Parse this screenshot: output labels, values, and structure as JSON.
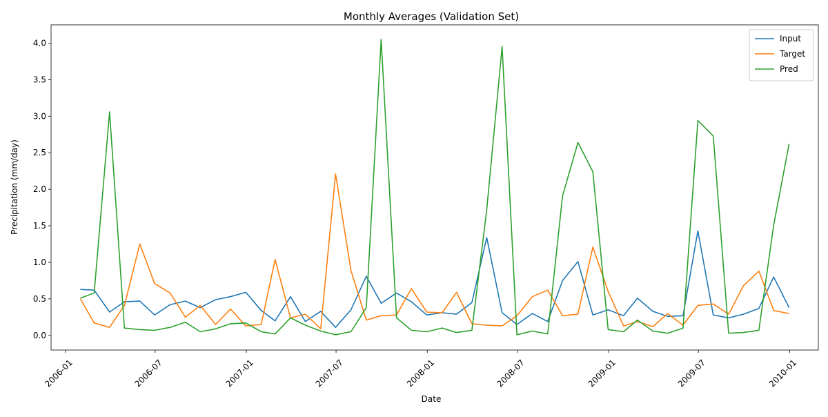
{
  "chart_data": {
    "type": "line",
    "title": "Monthly Averages (Validation Set)",
    "xlabel": "Date",
    "ylabel": "Precipitation (mm/day)",
    "x_ticks": [
      "2006-01",
      "2006-07",
      "2007-01",
      "2007-07",
      "2008-01",
      "2008-07",
      "2009-01",
      "2009-07",
      "2010-01"
    ],
    "y_ticks": [
      "0.0",
      "0.5",
      "1.0",
      "1.5",
      "2.0",
      "2.5",
      "3.0",
      "3.5",
      "4.0"
    ],
    "xlim": [
      "2005-12-03",
      "2010-02-28"
    ],
    "ylim": [
      -0.2,
      4.25
    ],
    "grid": false,
    "legend_position": "top-right",
    "x": [
      "2006-01-31",
      "2006-02-28",
      "2006-03-31",
      "2006-04-30",
      "2006-05-31",
      "2006-06-30",
      "2006-07-31",
      "2006-08-31",
      "2006-09-30",
      "2006-10-31",
      "2006-11-30",
      "2006-12-31",
      "2007-01-31",
      "2007-02-28",
      "2007-03-31",
      "2007-04-30",
      "2007-05-31",
      "2007-06-30",
      "2007-07-31",
      "2007-08-31",
      "2007-09-30",
      "2007-10-31",
      "2007-11-30",
      "2007-12-31",
      "2008-01-31",
      "2008-02-29",
      "2008-03-31",
      "2008-04-30",
      "2008-05-31",
      "2008-06-30",
      "2008-07-31",
      "2008-08-31",
      "2008-09-30",
      "2008-10-31",
      "2008-11-30",
      "2008-12-31",
      "2009-01-31",
      "2009-02-28",
      "2009-03-31",
      "2009-04-30",
      "2009-05-31",
      "2009-06-30",
      "2009-07-31",
      "2009-08-31",
      "2009-09-30",
      "2009-10-31",
      "2009-11-30",
      "2009-12-31"
    ],
    "series": [
      {
        "name": "Input",
        "color": "#1f77b4",
        "values": [
          0.63,
          0.62,
          0.32,
          0.46,
          0.47,
          0.28,
          0.42,
          0.47,
          0.38,
          0.49,
          0.53,
          0.59,
          0.34,
          0.2,
          0.53,
          0.19,
          0.33,
          0.11,
          0.35,
          0.81,
          0.44,
          0.58,
          0.46,
          0.28,
          0.31,
          0.29,
          0.45,
          1.34,
          0.31,
          0.15,
          0.3,
          0.19,
          0.75,
          1.01,
          0.28,
          0.35,
          0.27,
          0.51,
          0.33,
          0.26,
          0.27,
          1.43,
          0.28,
          0.24,
          0.29,
          0.37,
          0.8,
          0.38
        ]
      },
      {
        "name": "Target",
        "color": "#ff7f0e",
        "values": [
          0.5,
          0.17,
          0.11,
          0.41,
          1.25,
          0.71,
          0.58,
          0.25,
          0.41,
          0.15,
          0.36,
          0.13,
          0.15,
          1.04,
          0.24,
          0.29,
          0.09,
          2.21,
          0.89,
          0.21,
          0.27,
          0.28,
          0.64,
          0.32,
          0.31,
          0.59,
          0.16,
          0.14,
          0.13,
          0.27,
          0.53,
          0.62,
          0.27,
          0.29,
          1.21,
          0.6,
          0.13,
          0.19,
          0.12,
          0.3,
          0.14,
          0.41,
          0.43,
          0.29,
          0.68,
          0.88,
          0.34,
          0.3
        ]
      },
      {
        "name": "Pred",
        "color": "#2ca02c",
        "values": [
          0.51,
          0.58,
          3.06,
          0.1,
          0.08,
          0.07,
          0.11,
          0.18,
          0.05,
          0.09,
          0.16,
          0.17,
          0.05,
          0.02,
          0.24,
          0.14,
          0.06,
          0.01,
          0.05,
          0.38,
          4.05,
          0.24,
          0.07,
          0.05,
          0.1,
          0.04,
          0.07,
          1.72,
          3.95,
          0.01,
          0.06,
          0.02,
          1.91,
          2.64,
          2.24,
          0.08,
          0.05,
          0.21,
          0.06,
          0.03,
          0.1,
          2.94,
          2.73,
          0.03,
          0.04,
          0.07,
          1.51,
          2.62
        ]
      }
    ]
  }
}
